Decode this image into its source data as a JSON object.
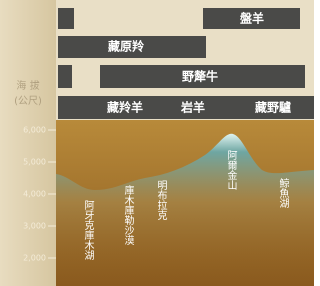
{
  "axis": {
    "title": "海 拔",
    "unit": "(公尺)",
    "ticks": [
      "6,000",
      "5,000",
      "4,000",
      "3,000",
      "2,000"
    ]
  },
  "bars": [
    {
      "label": "盤羊"
    },
    {
      "label": "藏原羚"
    },
    {
      "label": "野犛牛"
    },
    {
      "labels": [
        "藏羚羊",
        "岩羊",
        "藏野驢"
      ]
    }
  ],
  "places": [
    "阿牙克庫木湖",
    "庫木庫勒沙漠",
    "明布拉克",
    "阿爾金山",
    "鯨魚湖"
  ]
}
